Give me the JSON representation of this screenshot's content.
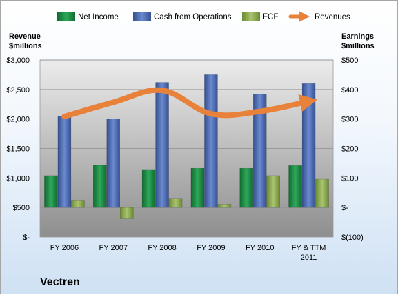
{
  "chart_data": {
    "type": "bar",
    "title": "Vectren",
    "categories": [
      "FY 2006",
      "FY 2007",
      "FY 2008",
      "FY 2009",
      "FY 2010",
      "FY & TTM 2011"
    ],
    "y_left": {
      "label_line1": "Revenue",
      "label_line2": "$millions",
      "range": [
        0,
        3000
      ],
      "ticks": [
        "$-",
        "$500",
        "$1,000",
        "$1,500",
        "$2,000",
        "$2,500",
        "$3,000"
      ]
    },
    "y_right": {
      "label_line1": "Earnings",
      "label_line2": "$millions",
      "range": [
        -100,
        500
      ],
      "ticks": [
        "$(100)",
        "$-",
        "$100",
        "$200",
        "$300",
        "$400",
        "$500"
      ]
    },
    "series": [
      {
        "name": "Net Income",
        "axis": "right",
        "kind": "bar",
        "color": "#1f8a43",
        "values": [
          108,
          143,
          129,
          133,
          133,
          142
        ]
      },
      {
        "name": "Cash from Operations",
        "axis": "right",
        "kind": "bar",
        "color": "#4a69b3",
        "values": [
          310,
          300,
          424,
          450,
          384,
          420
        ]
      },
      {
        "name": "FCF",
        "axis": "right",
        "kind": "bar",
        "color": "#8aa94d",
        "values": [
          25,
          -38,
          29,
          11,
          108,
          96
        ]
      },
      {
        "name": "Revenues",
        "axis": "left",
        "kind": "line",
        "color": "#e8823a",
        "values": [
          2042,
          2282,
          2484,
          2089,
          2129,
          2300
        ]
      }
    ],
    "legend_position": "top",
    "grid": true
  }
}
